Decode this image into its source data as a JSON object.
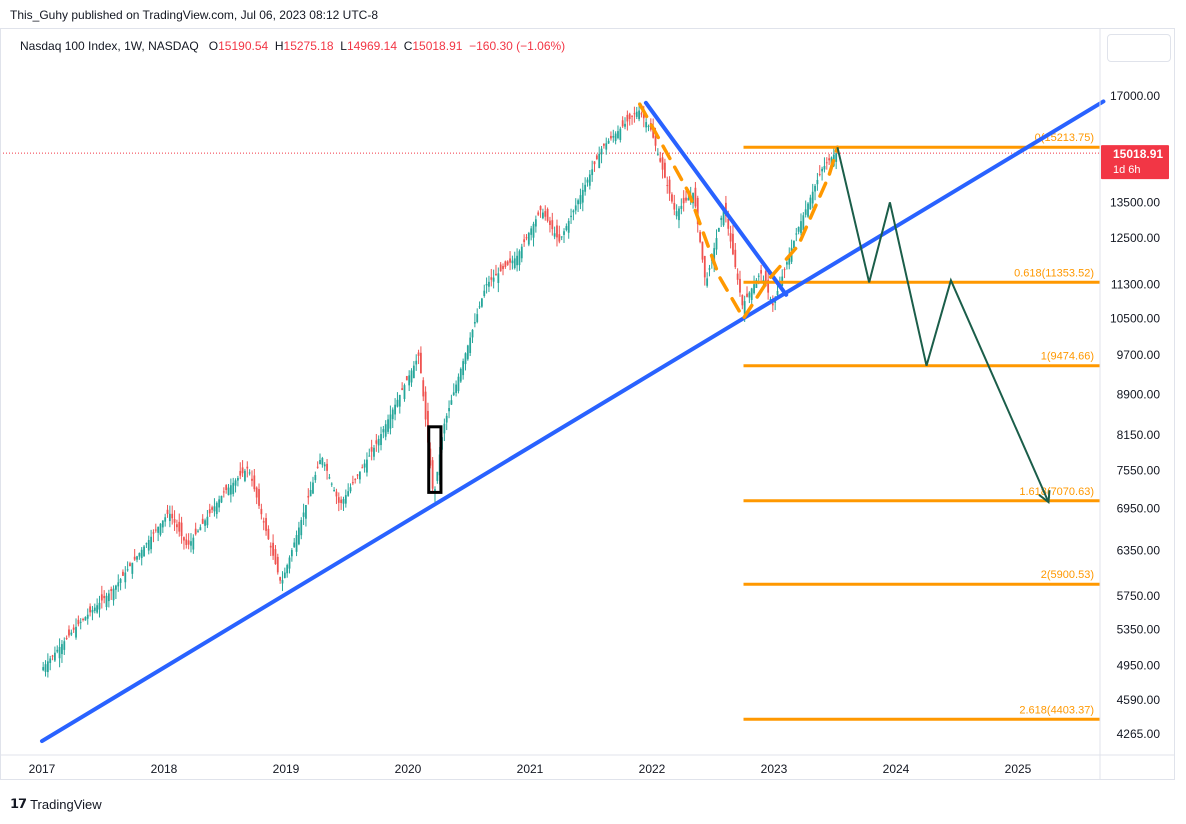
{
  "publisher": "This_Guhy published on TradingView.com, Jul 06, 2023 08:12 UTC-8",
  "legend": {
    "symbol": "Nasdaq 100 Index, 1W, NASDAQ",
    "o_label": "O",
    "o_value": "15190.54",
    "h_label": "H",
    "h_value": "15275.18",
    "l_label": "L",
    "l_value": "14969.14",
    "c_label": "C",
    "c_value": "15018.91",
    "change": "−160.30 (−1.06%)"
  },
  "footer": {
    "logo": "𝟭𝟳",
    "brand": "TradingView"
  },
  "colors": {
    "up": "#26a69a",
    "down": "#ef5350",
    "fib": "#ff9800",
    "trend": "#2962ff",
    "projection": "#1b5e4a",
    "price_tag": "#f23645",
    "axis_text": "#131722"
  },
  "chart_data": {
    "type": "candlestick",
    "timeframe": "1W",
    "y_scale": "log",
    "x_ticks": [
      "2017",
      "2018",
      "2019",
      "2020",
      "2021",
      "2022",
      "2023",
      "2024",
      "2025"
    ],
    "y_ticks": [
      "17000.00",
      "13500.00",
      "12500.00",
      "11300.00",
      "10500.00",
      "9700.00",
      "8900.00",
      "8150.00",
      "7550.00",
      "6950.00",
      "6350.00",
      "5750.00",
      "5350.00",
      "4950.00",
      "4590.00",
      "4265.00"
    ],
    "y_tick_values": [
      17000,
      13500,
      12500,
      11300,
      10500,
      9700,
      8900,
      8150,
      7550,
      6950,
      6350,
      5750,
      5350,
      4950,
      4590,
      4265
    ],
    "price_path": [
      [
        2017.0,
        4900
      ],
      [
        2017.3,
        5400
      ],
      [
        2017.6,
        5850
      ],
      [
        2018.05,
        6900
      ],
      [
        2018.2,
        6400
      ],
      [
        2018.5,
        7200
      ],
      [
        2018.7,
        7600
      ],
      [
        2018.85,
        6600
      ],
      [
        2018.97,
        5900
      ],
      [
        2019.3,
        7800
      ],
      [
        2019.45,
        7000
      ],
      [
        2019.75,
        8000
      ],
      [
        2020.1,
        9700
      ],
      [
        2020.22,
        7100
      ],
      [
        2020.3,
        8300
      ],
      [
        2020.65,
        11300
      ],
      [
        2020.9,
        12000
      ],
      [
        2021.1,
        13300
      ],
      [
        2021.25,
        12400
      ],
      [
        2021.6,
        15200
      ],
      [
        2021.9,
        16500
      ],
      [
        2022.0,
        15800
      ],
      [
        2022.2,
        13200
      ],
      [
        2022.35,
        13800
      ],
      [
        2022.45,
        11300
      ],
      [
        2022.6,
        13400
      ],
      [
        2022.75,
        10800
      ],
      [
        2022.9,
        11600
      ],
      [
        2023.0,
        10800
      ],
      [
        2023.2,
        12700
      ],
      [
        2023.4,
        14500
      ],
      [
        2023.51,
        15018.91
      ]
    ],
    "ohlc_last": {
      "open": 15190.54,
      "high": 15275.18,
      "low": 14969.14,
      "close": 15018.91,
      "change": -160.3,
      "change_pct": -1.06
    },
    "last_price_label": "15018.91",
    "countdown": "1d 6h",
    "fib_levels": [
      {
        "ratio": "0",
        "value": 15213.75,
        "label": "0(15213.75)"
      },
      {
        "ratio": "0.618",
        "value": 11353.52,
        "label": "0.618(11353.52)"
      },
      {
        "ratio": "1",
        "value": 9474.66,
        "label": "1(9474.66)"
      },
      {
        "ratio": "1.618",
        "value": 7070.63,
        "label": "1.618(7070.63)"
      },
      {
        "ratio": "2",
        "value": 5900.53,
        "label": "2(5900.53)"
      },
      {
        "ratio": "2.618",
        "value": 4403.37,
        "label": "2.618(4403.37)"
      }
    ],
    "fib_start_x": 2022.75,
    "trendlines": [
      {
        "name": "support",
        "points": [
          [
            2017.0,
            4200
          ],
          [
            2025.7,
            16800
          ]
        ]
      },
      {
        "name": "resistance",
        "points": [
          [
            2021.95,
            16750
          ],
          [
            2023.1,
            11050
          ]
        ]
      }
    ],
    "dashed_path": [
      [
        2021.9,
        16700
      ],
      [
        2022.3,
        13800
      ],
      [
        2022.55,
        11500
      ],
      [
        2022.75,
        10500
      ],
      [
        2022.95,
        11400
      ],
      [
        2023.2,
        12300
      ],
      [
        2023.45,
        14300
      ],
      [
        2023.52,
        15213.75
      ]
    ],
    "projection_path": [
      [
        2023.52,
        15213.75
      ],
      [
        2023.78,
        11350
      ],
      [
        2023.95,
        13500
      ],
      [
        2024.25,
        9475
      ],
      [
        2024.45,
        11400
      ],
      [
        2025.25,
        7050
      ]
    ],
    "highlight_box": {
      "x_range": [
        2020.17,
        2020.27
      ],
      "y_range": [
        7200,
        8300
      ]
    }
  }
}
